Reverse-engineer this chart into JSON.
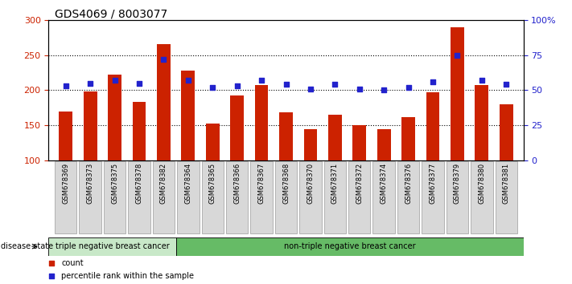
{
  "title": "GDS4069 / 8003077",
  "samples": [
    "GSM678369",
    "GSM678373",
    "GSM678375",
    "GSM678378",
    "GSM678382",
    "GSM678364",
    "GSM678365",
    "GSM678366",
    "GSM678367",
    "GSM678368",
    "GSM678370",
    "GSM678371",
    "GSM678372",
    "GSM678374",
    "GSM678376",
    "GSM678377",
    "GSM678379",
    "GSM678380",
    "GSM678381"
  ],
  "bar_values": [
    170,
    198,
    222,
    183,
    265,
    228,
    153,
    192,
    207,
    168,
    145,
    165,
    150,
    145,
    162,
    197,
    290,
    207,
    180
  ],
  "dot_values": [
    53,
    55,
    57,
    55,
    72,
    57,
    52,
    53,
    57,
    54,
    51,
    54,
    51,
    50,
    52,
    56,
    75,
    57,
    54
  ],
  "bar_color": "#cc2200",
  "dot_color": "#2222cc",
  "ylim_left": [
    100,
    300
  ],
  "ylim_right": [
    0,
    100
  ],
  "yticks_left": [
    100,
    150,
    200,
    250,
    300
  ],
  "yticks_right": [
    0,
    25,
    50,
    75,
    100
  ],
  "yticklabels_right": [
    "0",
    "25",
    "50",
    "75",
    "100%"
  ],
  "grid_values": [
    150,
    200,
    250
  ],
  "triple_neg_count": 5,
  "label_triple": "triple negative breast cancer",
  "label_non_triple": "non-triple negative breast cancer",
  "disease_state_label": "disease state",
  "legend_bar": "count",
  "legend_dot": "percentile rank within the sample",
  "color_triple": "#c8e8c8",
  "color_non_triple": "#66bb66",
  "tick_label_color_left": "#cc2200",
  "tick_label_color_right": "#2222cc",
  "title_fontsize": 10,
  "bar_width": 0.55
}
